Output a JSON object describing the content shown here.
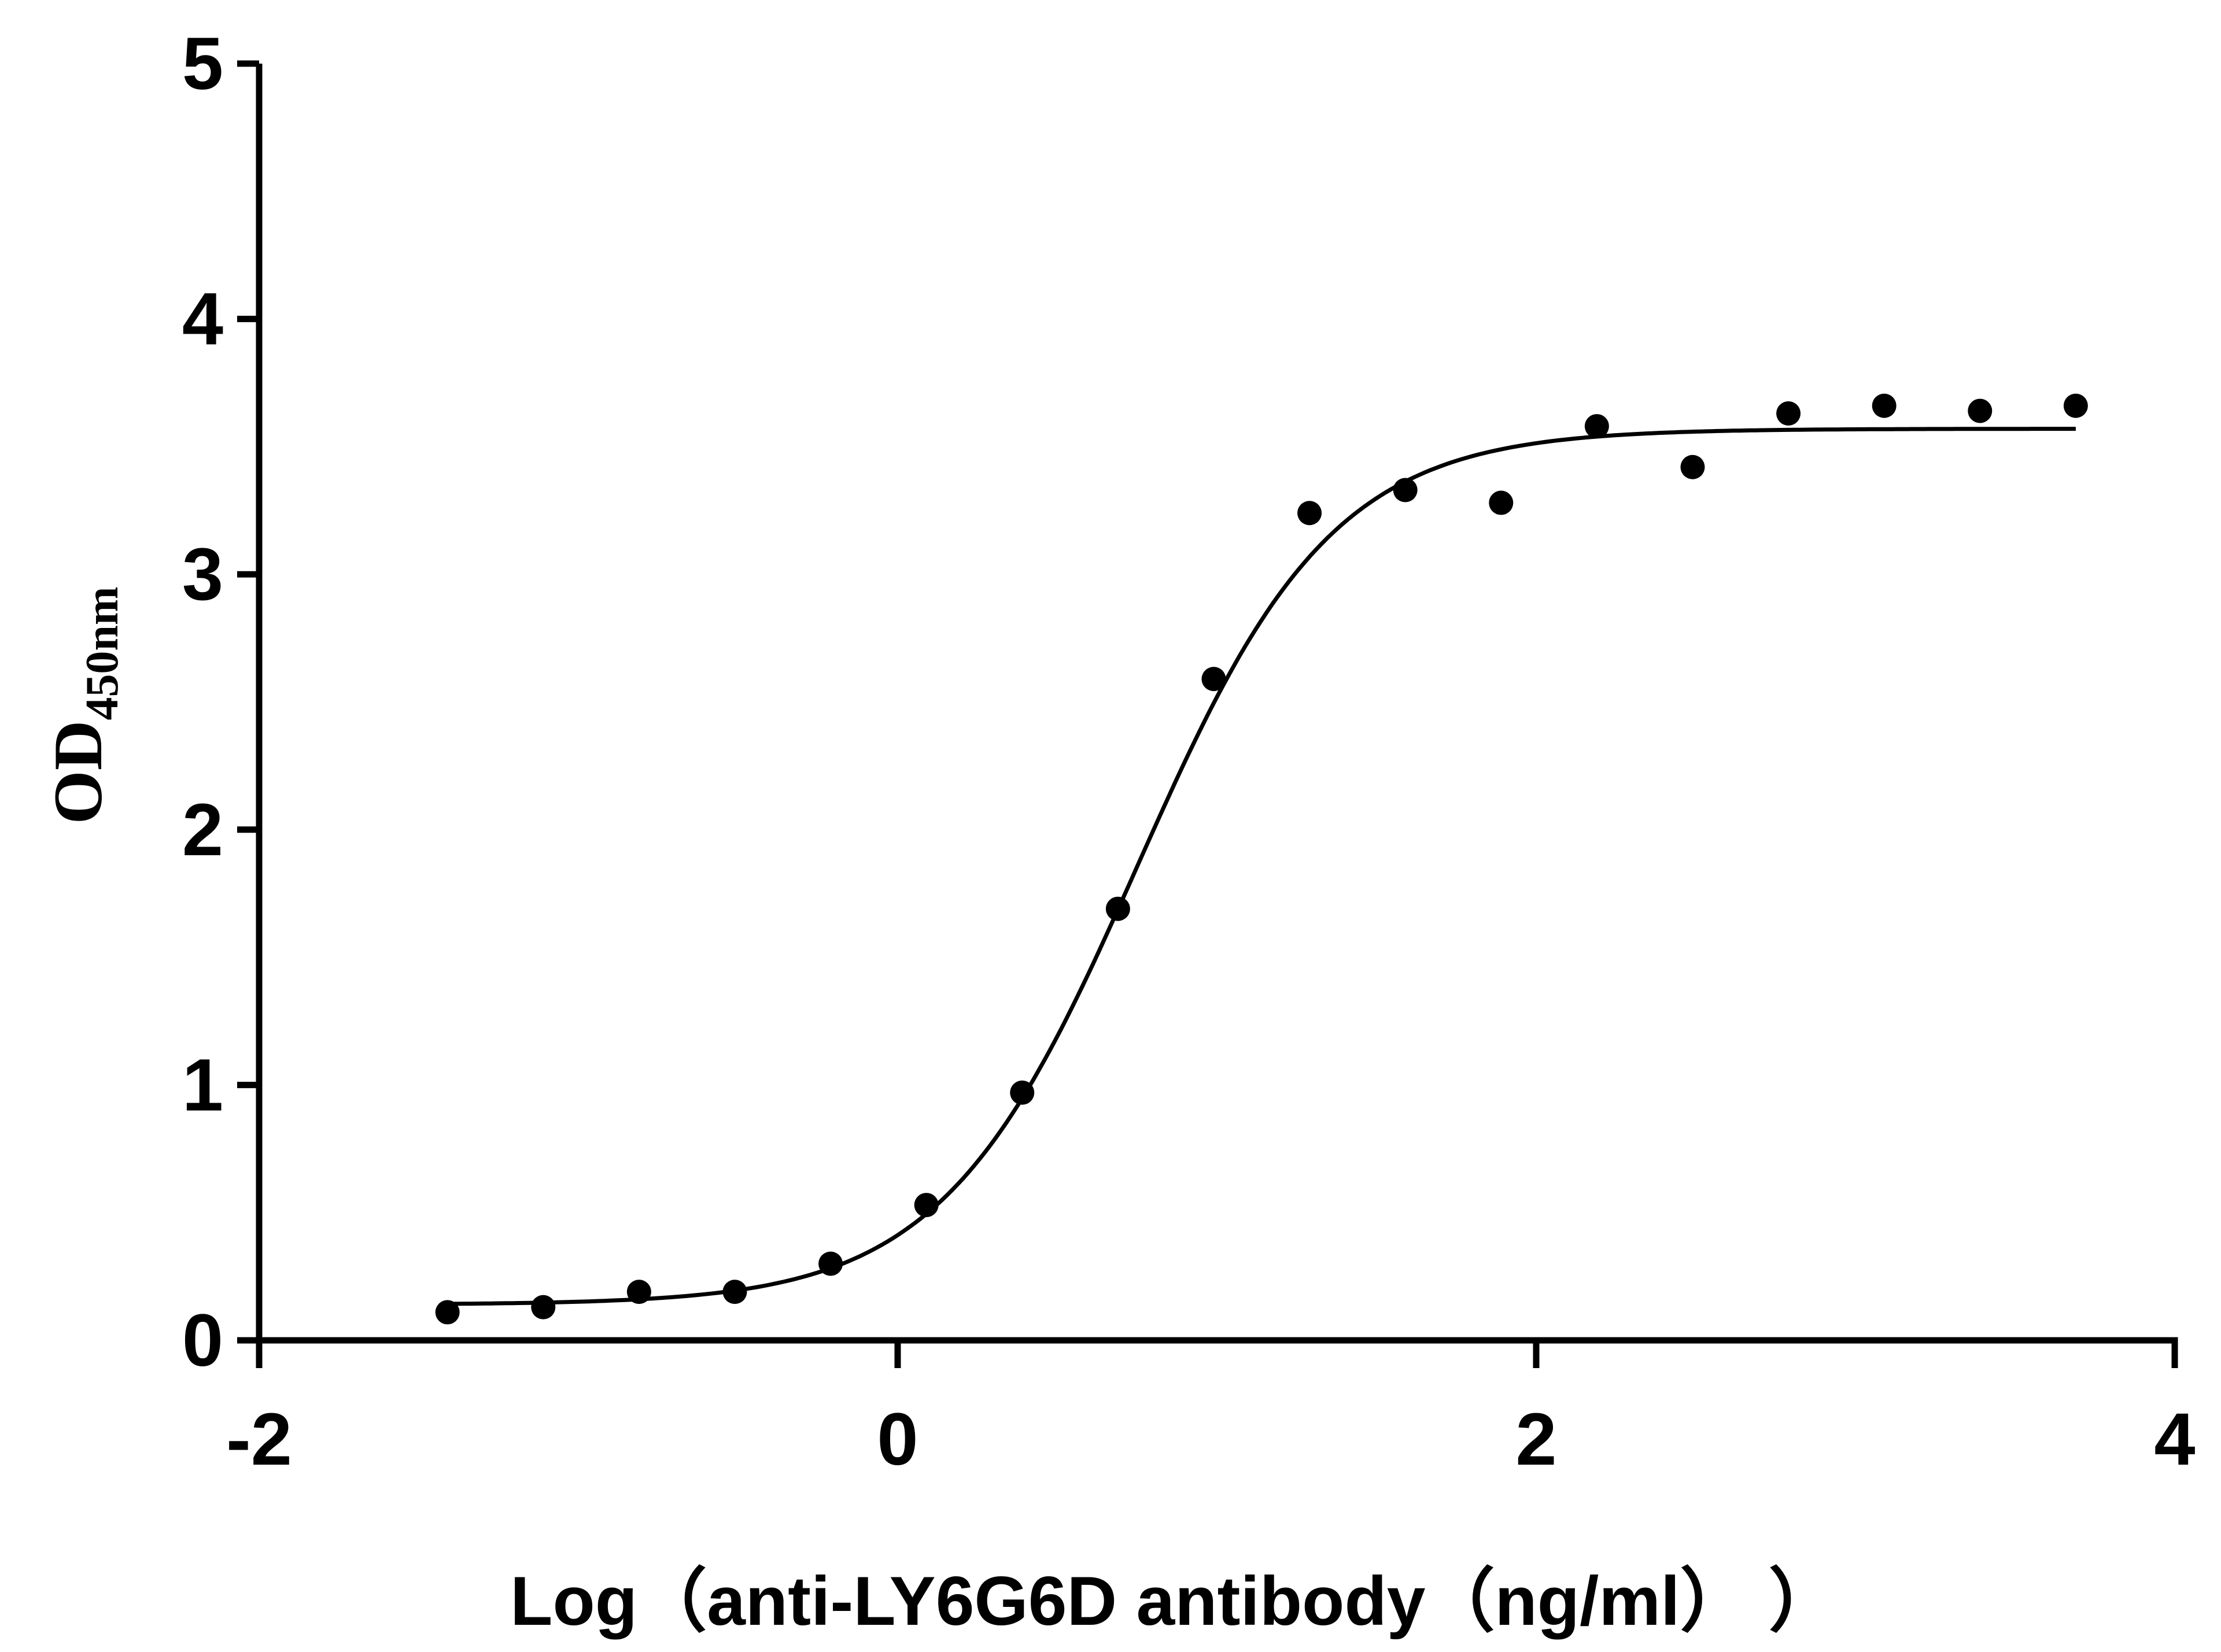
{
  "chart_data": {
    "type": "scatter",
    "title": "",
    "xlabel": "Log（anti-LY6G6D antibody（ng/ml）  ）",
    "ylabel": {
      "main": "OD",
      "subscript": "450nm"
    },
    "xlim": [
      -2,
      4
    ],
    "ylim": [
      0,
      5
    ],
    "xticks": [
      "-2",
      "0",
      "2",
      "4"
    ],
    "yticks": [
      "0",
      "1",
      "2",
      "3",
      "4",
      "5"
    ],
    "xtick_values": [
      -2,
      0,
      2,
      4
    ],
    "ytick_values": [
      0,
      1,
      2,
      3,
      4,
      5
    ],
    "grid": false,
    "points": {
      "x": [
        -1.41,
        -1.11,
        -0.81,
        -0.51,
        -0.21,
        0.09,
        0.39,
        0.69,
        0.99,
        1.29,
        1.59,
        1.89,
        2.19,
        2.49,
        2.79,
        3.09,
        3.39,
        3.69
      ],
      "y": [
        0.11,
        0.13,
        0.19,
        0.19,
        0.3,
        0.53,
        0.97,
        1.69,
        2.59,
        3.24,
        3.33,
        3.28,
        3.58,
        3.42,
        3.63,
        3.66,
        3.64,
        3.66
      ]
    },
    "fit": {
      "model": "four-parameter logistic",
      "bottom": 0.14,
      "top": 3.57,
      "log_ec50": 0.75,
      "hill_slope": 1.42,
      "x_range": [
        -1.41,
        3.69
      ]
    },
    "point_color": "#000000",
    "line_color": "#000000"
  }
}
